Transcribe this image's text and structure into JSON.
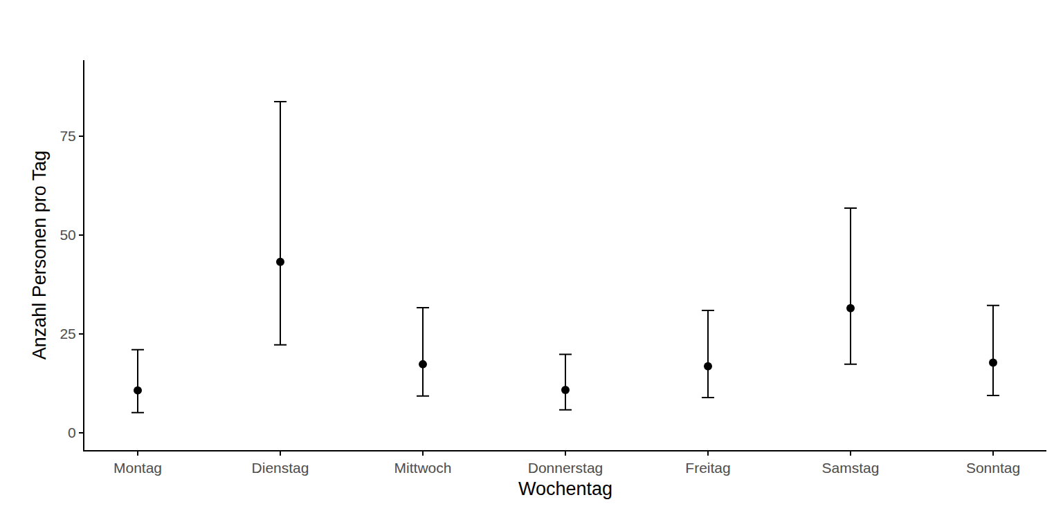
{
  "chart_data": {
    "type": "scatter",
    "x_label": "Wochentag",
    "y_label": "Anzahl Personen pro Tag",
    "categories": [
      "Montag",
      "Dienstag",
      "Mittwoch",
      "Donnerstag",
      "Freitag",
      "Samstag",
      "Sonntag"
    ],
    "values": [
      10.7,
      43.2,
      17.3,
      10.8,
      16.8,
      31.5,
      17.7
    ],
    "lower": [
      5.1,
      22.2,
      9.3,
      5.8,
      8.9,
      17.3,
      9.4
    ],
    "upper": [
      21.0,
      83.7,
      31.6,
      19.8,
      30.9,
      56.8,
      32.2
    ],
    "color": "#000000",
    "marker": "circle",
    "ylim": [
      -4.4,
      94.2
    ],
    "yticks": [
      0,
      25,
      50,
      75
    ],
    "grid": false
  }
}
